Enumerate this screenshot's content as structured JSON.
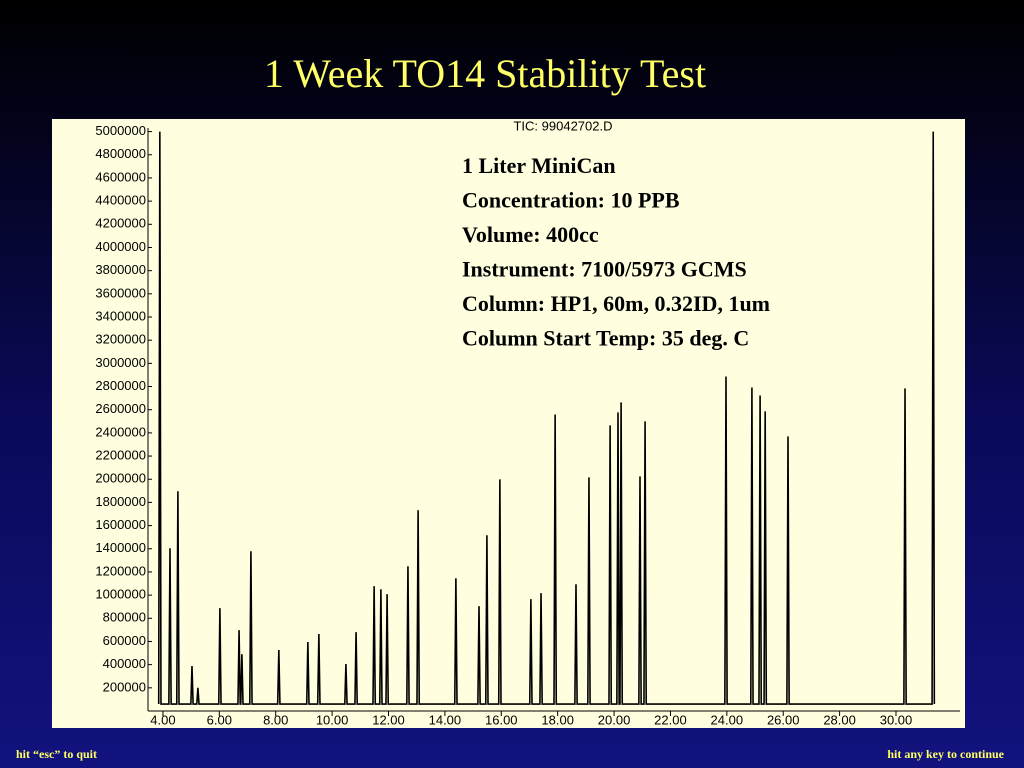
{
  "chart_data": {
    "type": "line",
    "title": "1 Week TO14 Stability Test",
    "subtitle": "TIC: 99042702.D",
    "annotations": [
      "1 Liter MiniCan",
      "Concentration: 10 PPB",
      "Volume: 400cc",
      "Instrument: 7100/5973 GCMS",
      "Column: HP1, 60m, 0.32ID, 1um",
      "Column Start Temp: 35 deg. C"
    ],
    "x": [
      3.85,
      3.89,
      3.93,
      4.21,
      4.25,
      4.29,
      4.49,
      4.53,
      4.57,
      4.99,
      5.03,
      5.07,
      5.2,
      5.24,
      5.28,
      5.98,
      6.02,
      6.06,
      6.66,
      6.7,
      6.74,
      6.76,
      6.8,
      6.84,
      7.08,
      7.12,
      7.16,
      8.07,
      8.11,
      8.15,
      9.1,
      9.14,
      9.18,
      9.49,
      9.53,
      9.57,
      10.45,
      10.49,
      10.53,
      10.81,
      10.85,
      10.89,
      11.45,
      11.49,
      11.53,
      11.69,
      11.73,
      11.77,
      11.91,
      11.95,
      11.99,
      12.65,
      12.69,
      12.73,
      13.01,
      13.05,
      13.09,
      14.35,
      14.39,
      14.43,
      15.17,
      15.21,
      15.25,
      15.45,
      15.49,
      15.53,
      15.91,
      15.95,
      15.99,
      17.01,
      17.05,
      17.09,
      17.37,
      17.41,
      17.45,
      17.87,
      17.91,
      17.95,
      18.61,
      18.65,
      18.69,
      19.07,
      19.11,
      19.15,
      19.82,
      19.86,
      19.9,
      20.1,
      20.14,
      20.18,
      20.21,
      20.25,
      20.29,
      20.88,
      20.92,
      20.96,
      21.06,
      21.1,
      21.14,
      23.93,
      23.97,
      24.01,
      24.85,
      24.89,
      24.93,
      25.14,
      25.18,
      25.22,
      25.32,
      25.36,
      25.4,
      26.13,
      26.17,
      26.21,
      30.28,
      30.32,
      30.36,
      31.28,
      31.32,
      31.36
    ],
    "series": [
      {
        "color": "#000000",
        "values": [
          60000,
          5000000,
          60000,
          60000,
          1404000,
          60000,
          60000,
          1896000,
          60000,
          60000,
          388000,
          60000,
          60000,
          200000,
          60000,
          60000,
          888000,
          60000,
          60000,
          698000,
          60000,
          60000,
          491000,
          60000,
          60000,
          1379000,
          60000,
          60000,
          526000,
          60000,
          60000,
          595000,
          60000,
          60000,
          664000,
          60000,
          60000,
          405000,
          60000,
          60000,
          681000,
          60000,
          60000,
          1077000,
          60000,
          60000,
          1051000,
          60000,
          60000,
          1008000,
          60000,
          60000,
          1249000,
          60000,
          60000,
          1732000,
          60000,
          60000,
          1146000,
          60000,
          60000,
          905000,
          60000,
          60000,
          1517000,
          60000,
          60000,
          1999000,
          60000,
          60000,
          965000,
          60000,
          60000,
          1017000,
          60000,
          60000,
          2559000,
          60000,
          60000,
          1094000,
          60000,
          60000,
          2016000,
          60000,
          60000,
          2465000,
          60000,
          60000,
          2577000,
          60000,
          60000,
          2663000,
          60000,
          60000,
          2025000,
          60000,
          60000,
          2499000,
          60000,
          60000,
          2887000,
          60000,
          60000,
          2792000,
          60000,
          60000,
          2723000,
          60000,
          60000,
          2585000,
          60000,
          60000,
          2370000,
          60000,
          60000,
          2784000,
          60000,
          60000,
          5000000,
          60000
        ]
      }
    ],
    "xlim": [
      3.47,
      32.27
    ],
    "ylim": [
      0,
      5100000
    ],
    "xticks": [
      {
        "value": 4,
        "label": "4.00"
      },
      {
        "value": 6,
        "label": "6.00"
      },
      {
        "value": 8,
        "label": "8.00"
      },
      {
        "value": 10,
        "label": "10.00"
      },
      {
        "value": 12,
        "label": "12.00"
      },
      {
        "value": 14,
        "label": "14.00"
      },
      {
        "value": 16,
        "label": "16.00"
      },
      {
        "value": 18,
        "label": "18.00"
      },
      {
        "value": 20,
        "label": "20.00"
      },
      {
        "value": 22,
        "label": "22.00"
      },
      {
        "value": 24,
        "label": "24.00"
      },
      {
        "value": 26,
        "label": "26.00"
      },
      {
        "value": 28,
        "label": "28.00"
      },
      {
        "value": 30,
        "label": "30.00"
      }
    ],
    "yticks": [
      200000,
      400000,
      600000,
      800000,
      1000000,
      1200000,
      1400000,
      1600000,
      1800000,
      2000000,
      2200000,
      2400000,
      2600000,
      2800000,
      3000000,
      3200000,
      3400000,
      3600000,
      3800000,
      4000000,
      4200000,
      4400000,
      4600000,
      4800000,
      5000000
    ],
    "grid": false
  },
  "footer": {
    "left": "hit “esc” to quit",
    "right": "hit any key to continue"
  }
}
